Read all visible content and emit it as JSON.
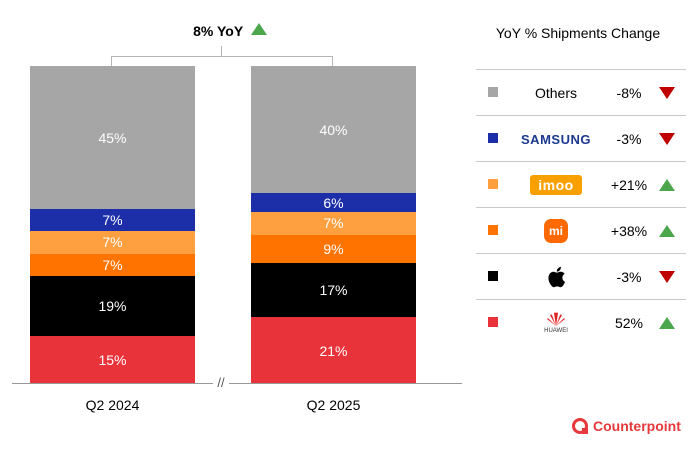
{
  "chart_data": {
    "type": "bar",
    "stacked": true,
    "normalized_percent": true,
    "categories": [
      "Q2 2024",
      "Q2 2025"
    ],
    "series": [
      {
        "name": "Huawei",
        "values": [
          15,
          21
        ],
        "labels": [
          "15%",
          "21%"
        ],
        "color": "#e8333a"
      },
      {
        "name": "Apple",
        "values": [
          19,
          17
        ],
        "labels": [
          "19%",
          "17%"
        ],
        "color": "#000000"
      },
      {
        "name": "Xiaomi",
        "values": [
          7,
          9
        ],
        "labels": [
          "7%",
          "9%"
        ],
        "color": "#ff7300"
      },
      {
        "name": "imoo",
        "values": [
          7,
          7
        ],
        "labels": [
          "7%",
          "7%"
        ],
        "color": "#ffa040"
      },
      {
        "name": "Samsung",
        "values": [
          7,
          6
        ],
        "labels": [
          "7%",
          "6%"
        ],
        "color": "#1c2fa8"
      },
      {
        "name": "Others",
        "values": [
          45,
          40
        ],
        "labels": [
          "45%",
          "40%"
        ],
        "color": "#a6a6a6"
      }
    ],
    "ylim": [
      0,
      100
    ],
    "grid": false,
    "annotation": "8% YoY",
    "annotation_direction": "up",
    "legend_title": "YoY % Shipments Change",
    "legend": [
      {
        "brand": "Others",
        "display": "Others",
        "change": "-8%",
        "direction": "down"
      },
      {
        "brand": "Samsung",
        "display": "SAMSUNG",
        "change": "-3%",
        "direction": "down"
      },
      {
        "brand": "imoo",
        "display": "imoo",
        "change": "+21%",
        "direction": "up"
      },
      {
        "brand": "Xiaomi",
        "display": "mi",
        "change": "+38%",
        "direction": "up"
      },
      {
        "brand": "Apple",
        "display": "apple-logo",
        "change": "-3%",
        "direction": "down"
      },
      {
        "brand": "Huawei",
        "display": "HUAWEI",
        "change": "52%",
        "direction": "up"
      }
    ]
  },
  "footer": {
    "brand": "Counterpoint"
  },
  "colors": {
    "up": "#4ca64c",
    "down": "#c00000",
    "brand": "#e5393c"
  }
}
